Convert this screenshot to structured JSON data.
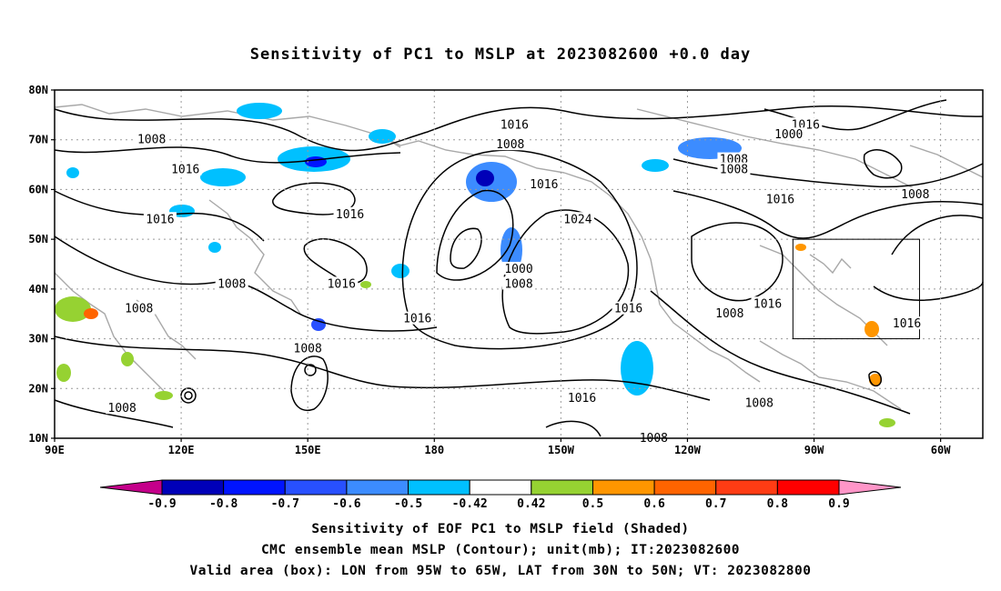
{
  "title": "Sensitivity of PC1 to MSLP at 2023082600 +0.0 day",
  "map": {
    "lon_range": [
      90,
      310
    ],
    "lat_range": [
      10,
      80
    ],
    "lat_ticks": [
      {
        "value": 80,
        "label": "80N"
      },
      {
        "value": 70,
        "label": "70N"
      },
      {
        "value": 60,
        "label": "60N"
      },
      {
        "value": 50,
        "label": "50N"
      },
      {
        "value": 40,
        "label": "40N"
      },
      {
        "value": 30,
        "label": "30N"
      },
      {
        "value": 20,
        "label": "20N"
      },
      {
        "value": 10,
        "label": "10N"
      }
    ],
    "lon_ticks": [
      {
        "value": 90,
        "label": "90E"
      },
      {
        "value": 120,
        "label": "120E"
      },
      {
        "value": 150,
        "label": "150E"
      },
      {
        "value": 180,
        "label": "180"
      },
      {
        "value": 210,
        "label": "150W"
      },
      {
        "value": 240,
        "label": "120W"
      },
      {
        "value": 270,
        "label": "90W"
      },
      {
        "value": 300,
        "label": "60W"
      }
    ],
    "grid": true,
    "valid_box": {
      "lon": [
        265,
        295
      ],
      "lat": [
        30,
        50
      ]
    },
    "contour_labels": [
      {
        "text": "1016",
        "lon": 199,
        "lat": 73
      },
      {
        "text": "1008",
        "lon": 113,
        "lat": 70
      },
      {
        "text": "1008",
        "lon": 198,
        "lat": 69
      },
      {
        "text": "1016",
        "lon": 121,
        "lat": 64
      },
      {
        "text": "1016",
        "lon": 206,
        "lat": 61
      },
      {
        "text": "1024",
        "lon": 214,
        "lat": 54
      },
      {
        "text": "1016",
        "lon": 115,
        "lat": 54
      },
      {
        "text": "1016",
        "lon": 160,
        "lat": 55
      },
      {
        "text": "1008",
        "lon": 132,
        "lat": 41
      },
      {
        "text": "1016",
        "lon": 158,
        "lat": 41
      },
      {
        "text": "1000",
        "lon": 200,
        "lat": 44
      },
      {
        "text": "1008",
        "lon": 200,
        "lat": 41
      },
      {
        "text": "1008",
        "lon": 110,
        "lat": 36
      },
      {
        "text": "1016",
        "lon": 226,
        "lat": 36
      },
      {
        "text": "1016",
        "lon": 176,
        "lat": 34
      },
      {
        "text": "1008",
        "lon": 150,
        "lat": 28
      },
      {
        "text": "1016",
        "lon": 268,
        "lat": 73
      },
      {
        "text": "1016",
        "lon": 259,
        "lat": 37
      },
      {
        "text": "1008",
        "lon": 250,
        "lat": 35
      },
      {
        "text": "1000",
        "lon": 264,
        "lat": 71
      },
      {
        "text": "1008",
        "lon": 251,
        "lat": 66
      },
      {
        "text": "1008",
        "lon": 251,
        "lat": 64
      },
      {
        "text": "1016",
        "lon": 262,
        "lat": 58
      },
      {
        "text": "1008",
        "lon": 294,
        "lat": 59
      },
      {
        "text": "1016",
        "lon": 292,
        "lat": 33
      },
      {
        "text": "1016",
        "lon": 215,
        "lat": 18
      },
      {
        "text": "1008",
        "lon": 106,
        "lat": 16
      },
      {
        "text": "1008",
        "lon": 257,
        "lat": 17
      },
      {
        "text": "1008",
        "lon": 232,
        "lat": 10
      }
    ]
  },
  "colorbar": {
    "colors": [
      "#c4008a",
      "#0000b8",
      "#0014ff",
      "#2850ff",
      "#3c8cff",
      "#00c0ff",
      "#ffffff",
      "#96d232",
      "#ff9600",
      "#ff6400",
      "#ff3c14",
      "#ff0000",
      "#ff96c8"
    ],
    "labels": [
      "-0.9",
      "-0.8",
      "-0.7",
      "-0.6",
      "-0.5",
      "-0.42",
      "0.42",
      "0.5",
      "0.6",
      "0.7",
      "0.8",
      "0.9"
    ]
  },
  "captions": {
    "line1": "Sensitivity of EOF PC1 to MSLP field (Shaded)",
    "line2": "CMC ensemble mean MSLP (Contour); unit(mb); IT:2023082600",
    "line3": "Valid area (box): LON from 95W to 65W, LAT from 30N to 50N; VT: 2023082800"
  }
}
